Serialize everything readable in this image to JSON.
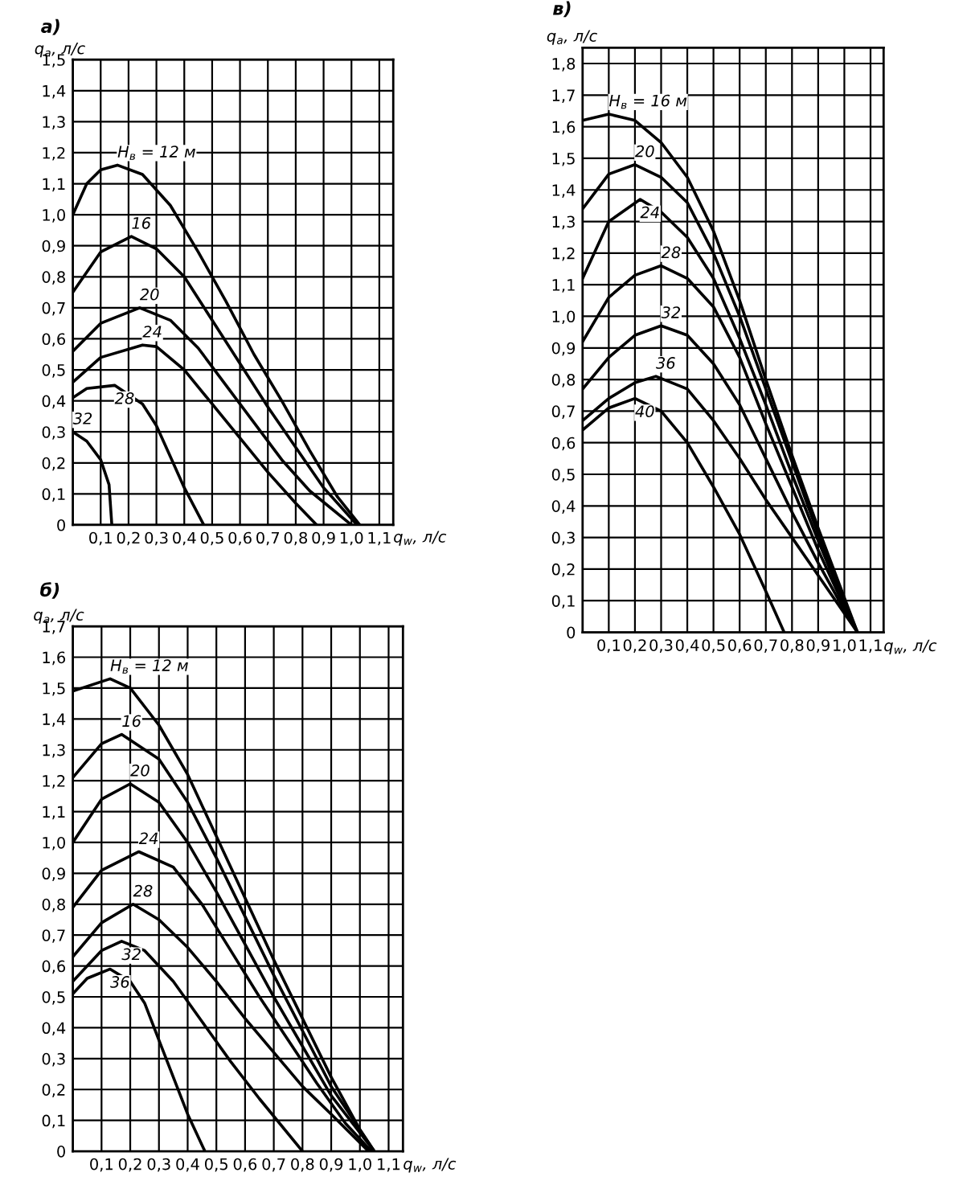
{
  "chart_data": [
    {
      "type": "line",
      "title": "а)",
      "ylabel": "q$_{a}$, л/с",
      "xlabel": "q$_{w}$, л/с",
      "xlim": [
        0,
        1.15
      ],
      "ylim": [
        0,
        1.5
      ],
      "xticks": [
        {
          "value": 0.1,
          "label": "0,1"
        },
        {
          "value": 0.2,
          "label": "0,2"
        },
        {
          "value": 0.3,
          "label": "0,3"
        },
        {
          "value": 0.4,
          "label": "0,4"
        },
        {
          "value": 0.5,
          "label": "0,5"
        },
        {
          "value": 0.6,
          "label": "0,6"
        },
        {
          "value": 0.7,
          "label": "0,7"
        },
        {
          "value": 0.8,
          "label": "0,8"
        },
        {
          "value": 0.9,
          "label": "0,9"
        },
        {
          "value": 1.0,
          "label": "1,0"
        },
        {
          "value": 1.1,
          "label": "1,1"
        }
      ],
      "yticks": [
        0,
        {
          "value": 0.1,
          "label": "0,1"
        },
        {
          "value": 0.2,
          "label": "0,2"
        },
        {
          "value": 0.3,
          "label": "0,3"
        },
        {
          "value": 0.4,
          "label": "0,4"
        },
        {
          "value": 0.5,
          "label": "0,5"
        },
        {
          "value": 0.6,
          "label": "0,6"
        },
        {
          "value": 0.7,
          "label": "0,7"
        },
        {
          "value": 0.8,
          "label": "0,8"
        },
        {
          "value": 0.9,
          "label": "0,9"
        },
        {
          "value": 1.0,
          "label": "1,0"
        },
        {
          "value": 1.1,
          "label": "1,1"
        },
        {
          "value": 1.2,
          "label": "1,2"
        },
        {
          "value": 1.3,
          "label": "1,3"
        },
        {
          "value": 1.4,
          "label": "1,4"
        },
        {
          "value": 1.5,
          "label": "1,5"
        }
      ],
      "grid": true,
      "legend": false,
      "marker": "none",
      "line_style": "solid",
      "series": [
        {
          "name": "H$_{в}$ = 12 м",
          "color": "#000000",
          "x": [
            0,
            0.05,
            0.1,
            0.16,
            0.25,
            0.35,
            0.45,
            0.55,
            0.65,
            0.75,
            0.85,
            0.95,
            1.03
          ],
          "values": [
            1.0,
            1.1,
            1.145,
            1.16,
            1.13,
            1.03,
            0.88,
            0.72,
            0.55,
            0.4,
            0.24,
            0.09,
            0
          ]
        },
        {
          "name": "16",
          "color": "#000000",
          "x": [
            0,
            0.1,
            0.21,
            0.3,
            0.4,
            0.5,
            0.6,
            0.7,
            0.8,
            0.9,
            1.02
          ],
          "values": [
            0.75,
            0.88,
            0.93,
            0.89,
            0.8,
            0.66,
            0.52,
            0.38,
            0.25,
            0.12,
            0
          ]
        },
        {
          "name": "20",
          "color": "#000000",
          "x": [
            0,
            0.1,
            0.24,
            0.35,
            0.45,
            0.55,
            0.65,
            0.75,
            0.85,
            1.0
          ],
          "values": [
            0.56,
            0.65,
            0.7,
            0.66,
            0.57,
            0.45,
            0.33,
            0.21,
            0.11,
            0
          ]
        },
        {
          "name": "24",
          "color": "#000000",
          "x": [
            0,
            0.1,
            0.25,
            0.3,
            0.4,
            0.5,
            0.6,
            0.7,
            0.8,
            0.875
          ],
          "values": [
            0.46,
            0.54,
            0.58,
            0.575,
            0.5,
            0.39,
            0.28,
            0.17,
            0.07,
            0
          ]
        },
        {
          "name": "28",
          "color": "#000000",
          "x": [
            0,
            0.05,
            0.15,
            0.25,
            0.3,
            0.35,
            0.4,
            0.47
          ],
          "values": [
            0.41,
            0.44,
            0.45,
            0.39,
            0.32,
            0.22,
            0.12,
            0
          ]
        },
        {
          "name": "32",
          "color": "#000000",
          "x": [
            0,
            0.05,
            0.1,
            0.13,
            0.14
          ],
          "values": [
            0.3,
            0.27,
            0.21,
            0.13,
            0
          ]
        }
      ]
    },
    {
      "type": "line",
      "title": "в)",
      "ylabel": "q$_{a}$, л/с",
      "xlabel": "q$_{w}$, л/с",
      "xlim": [
        0,
        1.15
      ],
      "ylim": [
        0,
        1.85
      ],
      "xticks": [
        {
          "value": 0.1,
          "label": "0,1"
        },
        {
          "value": 0.2,
          "label": "0,2"
        },
        {
          "value": 0.3,
          "label": "0,3"
        },
        {
          "value": 0.4,
          "label": "0,4"
        },
        {
          "value": 0.5,
          "label": "0,5"
        },
        {
          "value": 0.6,
          "label": "0,6"
        },
        {
          "value": 0.7,
          "label": "0,7"
        },
        {
          "value": 0.8,
          "label": "0,8"
        },
        {
          "value": 0.9,
          "label": "0,9"
        },
        {
          "value": 1.0,
          "label": "1,0"
        },
        {
          "value": 1.1,
          "label": "1,1"
        }
      ],
      "yticks": [
        0,
        {
          "value": 0.1,
          "label": "0,1"
        },
        {
          "value": 0.2,
          "label": "0,2"
        },
        {
          "value": 0.3,
          "label": "0,3"
        },
        {
          "value": 0.4,
          "label": "0,4"
        },
        {
          "value": 0.5,
          "label": "0,5"
        },
        {
          "value": 0.6,
          "label": "0,6"
        },
        {
          "value": 0.7,
          "label": "0,7"
        },
        {
          "value": 0.8,
          "label": "0,8"
        },
        {
          "value": 0.9,
          "label": "0,9"
        },
        {
          "value": 1.0,
          "label": "1,0"
        },
        {
          "value": 1.1,
          "label": "1,1"
        },
        {
          "value": 1.2,
          "label": "1,2"
        },
        {
          "value": 1.3,
          "label": "1,3"
        },
        {
          "value": 1.4,
          "label": "1,4"
        },
        {
          "value": 1.5,
          "label": "1,5"
        },
        {
          "value": 1.6,
          "label": "1,6"
        },
        {
          "value": 1.7,
          "label": "1,7"
        },
        {
          "value": 1.8,
          "label": "1,8"
        }
      ],
      "grid": true,
      "legend": false,
      "marker": "none",
      "line_style": "solid",
      "series": [
        {
          "name": "H$_{в}$ = 16 м",
          "color": "#000000",
          "x": [
            0,
            0.1,
            0.2,
            0.3,
            0.4,
            0.5,
            0.6,
            0.7,
            0.8,
            0.9,
            1.0,
            1.05
          ],
          "values": [
            1.62,
            1.64,
            1.62,
            1.55,
            1.44,
            1.27,
            1.05,
            0.8,
            0.56,
            0.33,
            0.11,
            0
          ]
        },
        {
          "name": "20",
          "color": "#000000",
          "x": [
            0,
            0.1,
            0.2,
            0.3,
            0.4,
            0.5,
            0.6,
            0.7,
            0.8,
            0.9,
            1.0,
            1.05
          ],
          "values": [
            1.34,
            1.45,
            1.48,
            1.44,
            1.36,
            1.2,
            1.0,
            0.77,
            0.54,
            0.31,
            0.1,
            0
          ]
        },
        {
          "name": "24",
          "color": "#000000",
          "x": [
            0,
            0.1,
            0.22,
            0.3,
            0.4,
            0.5,
            0.6,
            0.7,
            0.8,
            0.9,
            1.0,
            1.05
          ],
          "values": [
            1.12,
            1.3,
            1.37,
            1.33,
            1.25,
            1.12,
            0.93,
            0.72,
            0.5,
            0.29,
            0.09,
            0
          ]
        },
        {
          "name": "28",
          "color": "#000000",
          "x": [
            0,
            0.1,
            0.2,
            0.3,
            0.4,
            0.5,
            0.6,
            0.7,
            0.8,
            0.9,
            1.0,
            1.05
          ],
          "values": [
            0.92,
            1.06,
            1.13,
            1.16,
            1.12,
            1.03,
            0.87,
            0.66,
            0.46,
            0.26,
            0.08,
            0
          ]
        },
        {
          "name": "32",
          "color": "#000000",
          "x": [
            0,
            0.1,
            0.2,
            0.3,
            0.4,
            0.5,
            0.6,
            0.7,
            0.8,
            0.9,
            1.0,
            1.05
          ],
          "values": [
            0.77,
            0.87,
            0.94,
            0.97,
            0.94,
            0.85,
            0.72,
            0.55,
            0.38,
            0.22,
            0.07,
            0
          ]
        },
        {
          "name": "36",
          "color": "#000000",
          "x": [
            0,
            0.1,
            0.2,
            0.28,
            0.4,
            0.5,
            0.6,
            0.7,
            0.8,
            0.9,
            1.0,
            1.05
          ],
          "values": [
            0.67,
            0.74,
            0.79,
            0.81,
            0.77,
            0.67,
            0.55,
            0.42,
            0.3,
            0.18,
            0.06,
            0
          ]
        },
        {
          "name": "40",
          "color": "#000000",
          "x": [
            0,
            0.1,
            0.2,
            0.3,
            0.4,
            0.5,
            0.6,
            0.7,
            0.77
          ],
          "values": [
            0.64,
            0.71,
            0.74,
            0.7,
            0.6,
            0.46,
            0.31,
            0.13,
            0
          ]
        }
      ]
    },
    {
      "type": "line",
      "title": "б)",
      "ylabel": "q$_{a}$, л/с",
      "xlabel": "q$_{w}$, л/с",
      "xlim": [
        0,
        1.15
      ],
      "ylim": [
        0,
        1.7
      ],
      "xticks": [
        {
          "value": 0.1,
          "label": "0,1"
        },
        {
          "value": 0.2,
          "label": "0,2"
        },
        {
          "value": 0.3,
          "label": "0,3"
        },
        {
          "value": 0.4,
          "label": "0,4"
        },
        {
          "value": 0.5,
          "label": "0,5"
        },
        {
          "value": 0.6,
          "label": "0,6"
        },
        {
          "value": 0.7,
          "label": "0,7"
        },
        {
          "value": 0.8,
          "label": "0,8"
        },
        {
          "value": 0.9,
          "label": "0,9"
        },
        {
          "value": 1.0,
          "label": "1,0"
        },
        {
          "value": 1.1,
          "label": "1,1"
        }
      ],
      "yticks": [
        0,
        {
          "value": 0.1,
          "label": "0,1"
        },
        {
          "value": 0.2,
          "label": "0,2"
        },
        {
          "value": 0.3,
          "label": "0,3"
        },
        {
          "value": 0.4,
          "label": "0,4"
        },
        {
          "value": 0.5,
          "label": "0,5"
        },
        {
          "value": 0.6,
          "label": "0,6"
        },
        {
          "value": 0.7,
          "label": "0,7"
        },
        {
          "value": 0.8,
          "label": "0,8"
        },
        {
          "value": 0.9,
          "label": "0,9"
        },
        {
          "value": 1.0,
          "label": "1,0"
        },
        {
          "value": 1.1,
          "label": "1,1"
        },
        {
          "value": 1.2,
          "label": "1,2"
        },
        {
          "value": 1.3,
          "label": "1,3"
        },
        {
          "value": 1.4,
          "label": "1,4"
        },
        {
          "value": 1.5,
          "label": "1,5"
        },
        {
          "value": 1.6,
          "label": "1,6"
        },
        {
          "value": 1.7,
          "label": "1,7"
        }
      ],
      "grid": true,
      "legend": false,
      "marker": "none",
      "line_style": "solid",
      "series": [
        {
          "name": "H$_{в}$ = 12 м",
          "color": "#000000",
          "x": [
            0,
            0.13,
            0.2,
            0.3,
            0.4,
            0.5,
            0.6,
            0.7,
            0.8,
            0.9,
            1.0,
            1.05
          ],
          "values": [
            1.49,
            1.53,
            1.5,
            1.38,
            1.22,
            1.02,
            0.82,
            0.62,
            0.43,
            0.24,
            0.07,
            0
          ]
        },
        {
          "name": "16",
          "color": "#000000",
          "x": [
            0,
            0.1,
            0.17,
            0.3,
            0.4,
            0.5,
            0.6,
            0.7,
            0.8,
            0.9,
            1.05
          ],
          "values": [
            1.21,
            1.32,
            1.35,
            1.27,
            1.13,
            0.95,
            0.76,
            0.57,
            0.39,
            0.21,
            0
          ]
        },
        {
          "name": "20",
          "color": "#000000",
          "x": [
            0,
            0.1,
            0.2,
            0.3,
            0.4,
            0.5,
            0.6,
            0.7,
            0.8,
            0.9,
            1.05
          ],
          "values": [
            1.0,
            1.14,
            1.19,
            1.13,
            1.0,
            0.84,
            0.67,
            0.5,
            0.34,
            0.18,
            0
          ]
        },
        {
          "name": "24",
          "color": "#000000",
          "x": [
            0,
            0.1,
            0.23,
            0.35,
            0.45,
            0.55,
            0.65,
            0.75,
            0.85,
            0.95,
            1.04
          ],
          "values": [
            0.79,
            0.91,
            0.97,
            0.92,
            0.8,
            0.65,
            0.5,
            0.36,
            0.22,
            0.09,
            0
          ]
        },
        {
          "name": "28",
          "color": "#000000",
          "x": [
            0,
            0.1,
            0.21,
            0.3,
            0.4,
            0.5,
            0.6,
            0.7,
            0.8,
            0.9,
            1.03
          ],
          "values": [
            0.63,
            0.74,
            0.8,
            0.75,
            0.66,
            0.55,
            0.43,
            0.32,
            0.21,
            0.12,
            0
          ]
        },
        {
          "name": "32",
          "color": "#000000",
          "x": [
            0,
            0.1,
            0.17,
            0.25,
            0.35,
            0.45,
            0.55,
            0.65,
            0.8
          ],
          "values": [
            0.55,
            0.65,
            0.68,
            0.65,
            0.55,
            0.42,
            0.29,
            0.17,
            0
          ]
        },
        {
          "name": "36",
          "color": "#000000",
          "x": [
            0,
            0.05,
            0.13,
            0.2,
            0.25,
            0.3,
            0.35,
            0.4,
            0.46
          ],
          "values": [
            0.51,
            0.56,
            0.59,
            0.55,
            0.48,
            0.36,
            0.24,
            0.12,
            0
          ]
        }
      ]
    }
  ]
}
